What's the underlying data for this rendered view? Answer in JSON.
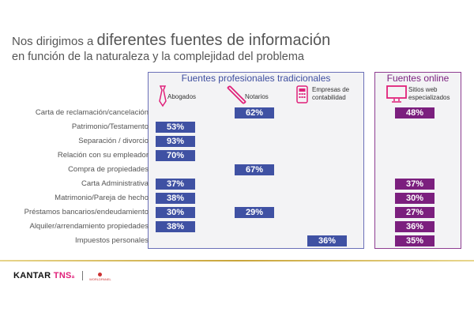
{
  "title": {
    "prefix": "Nos dirigimos a ",
    "emphasis": "diferentes fuentes de información",
    "line2": "en función de la naturaleza y la complejidad del problema"
  },
  "groups": {
    "traditional": "Fuentes profesionales tradicionales",
    "online": "Fuentes online"
  },
  "columns": [
    {
      "label": "Abogados",
      "icon": "tie-icon"
    },
    {
      "label": "Notarios",
      "icon": "pen-icon"
    },
    {
      "label": "Empresas de contabilidad",
      "icon": "calculator-icon"
    },
    {
      "label": "Sitios web especializados",
      "icon": "monitor-icon"
    }
  ],
  "rows": [
    {
      "label": "Carta de reclamación/cancelación",
      "values": [
        null,
        "62%",
        null,
        "48%"
      ]
    },
    {
      "label": "Patrimonio/Testamento",
      "values": [
        "53%",
        null,
        null,
        null
      ]
    },
    {
      "label": "Separación / divorcio",
      "values": [
        "93%",
        null,
        null,
        null
      ]
    },
    {
      "label": "Relación con su empleador",
      "values": [
        "70%",
        null,
        null,
        null
      ]
    },
    {
      "label": "Compra de propiedades",
      "values": [
        null,
        "67%",
        null,
        null
      ]
    },
    {
      "label": "Carta Administrativa",
      "values": [
        "37%",
        null,
        null,
        "37%"
      ]
    },
    {
      "label": "Matrimonio/Pareja de hecho",
      "values": [
        "38%",
        null,
        null,
        "30%"
      ]
    },
    {
      "label": "Préstamos bancarios/endeudamiento",
      "values": [
        "30%",
        "29%",
        null,
        "27%"
      ]
    },
    {
      "label": "Alquiler/arrendamiento propiedades",
      "values": [
        "38%",
        null,
        null,
        "36%"
      ]
    },
    {
      "label": "Impuestos personales",
      "values": [
        null,
        null,
        "36%",
        "35%"
      ]
    }
  ],
  "colors": {
    "traditional": "#3f51a3",
    "online": "#7b1f7e",
    "icon": "#e0217a"
  },
  "footer": {
    "brand": "KANTAR",
    "brand2": "TNS",
    "brand_mark": "a",
    "partner": "WORLDPANEL"
  }
}
